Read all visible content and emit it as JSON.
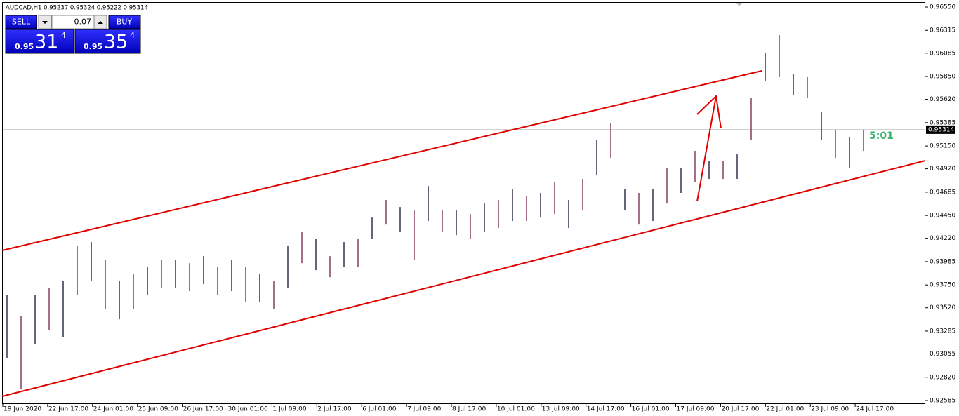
{
  "header": {
    "quote": "AUDCAD,H1 0.95237 0.95324 0.95222 0.95314"
  },
  "trade_panel": {
    "sell": "SELL",
    "buy": "BUY",
    "lots": "0.07",
    "sell_price": {
      "big": "0.95",
      "digits": "31",
      "pip": "4"
    },
    "buy_price": {
      "big": "0.95",
      "digits": "35",
      "pip": "4"
    }
  },
  "price_axis": {
    "ticks": [
      {
        "value": 0.9655,
        "label": "0.96550"
      },
      0.96315,
      0.96085,
      {
        "value": 0.9585,
        "label": "0.95850"
      },
      {
        "value": 0.9562,
        "label": "0.95620"
      },
      0.95385,
      {
        "value": 0.9515,
        "label": "0.95150"
      },
      {
        "value": 0.9492,
        "label": "0.94920"
      },
      0.94685,
      {
        "value": 0.9445,
        "label": "0.94450"
      },
      {
        "value": 0.9422,
        "label": "0.94220"
      },
      0.93985,
      {
        "value": 0.9375,
        "label": "0.93750"
      },
      {
        "value": 0.9352,
        "label": "0.93520"
      },
      0.93285,
      0.93055,
      {
        "value": 0.9282,
        "label": "0.92820"
      },
      0.92585
    ],
    "current": 0.95314
  },
  "time_axis": [
    "19 Jun 2020",
    "22 Jun 17:00",
    "24 Jun 01:00",
    "25 Jun 09:00",
    "26 Jun 17:00",
    "30 Jun 01:00",
    "1 Jul 09:00",
    "2 Jul 17:00",
    "6 Jul 01:00",
    "7 Jul 09:00",
    "8 Jul 17:00",
    "10 Jul 01:00",
    "13 Jul 09:00",
    "14 Jul 17:00",
    "16 Jul 01:00",
    "17 Jul 09:00",
    "20 Jul 17:00",
    "22 Jul 01:00",
    "23 Jul 09:00",
    "24 Jul 17:00"
  ],
  "bars": {
    "highs": [
      0.93651,
      0.93439,
      0.93651,
      0.93722,
      0.93793,
      0.94146,
      0.94182,
      0.94005,
      0.93793,
      0.93863,
      0.93934,
      0.94005,
      0.94005,
      0.93969,
      0.9404,
      0.93934,
      0.94005,
      0.93934,
      0.93863,
      0.93793,
      0.94146,
      0.94288,
      0.94217,
      0.9404,
      0.94182,
      0.94217,
      0.94429,
      0.94606,
      0.94535,
      0.945,
      0.94747,
      0.945,
      0.945,
      0.94464,
      0.9457,
      0.94606,
      0.94712,
      0.94641,
      0.94677,
      0.94783,
      0.94606,
      0.94818,
      0.95207,
      0.95383,
      0.94712,
      0.94677,
      0.94712,
      0.94924,
      0.94924,
      0.95101,
      0.94995,
      0.94995,
      0.95065,
      0.95631,
      0.9609,
      0.96267,
      0.95878,
      0.95843,
      0.9549,
      0.95313,
      0.95242,
      0.95313
    ],
    "lows": [
      0.93015,
      0.92697,
      0.93156,
      0.93298,
      0.93227,
      0.93651,
      0.93793,
      0.9351,
      0.93404,
      0.9351,
      0.93651,
      0.93722,
      0.93722,
      0.93687,
      0.93757,
      0.93651,
      0.93687,
      0.93581,
      0.93581,
      0.9351,
      0.93722,
      0.93969,
      0.93899,
      0.93828,
      0.93934,
      0.93934,
      0.94217,
      0.94358,
      0.94288,
      0.94005,
      0.94394,
      0.94288,
      0.94252,
      0.94217,
      0.94288,
      0.94323,
      0.94394,
      0.94394,
      0.94429,
      0.94464,
      0.94323,
      0.945,
      0.94853,
      0.9503,
      0.945,
      0.94358,
      0.94394,
      0.9457,
      0.94677,
      0.94783,
      0.94818,
      0.94818,
      0.94818,
      0.95207,
      0.95808,
      0.95843,
      0.95666,
      0.95631,
      0.95207,
      0.9503,
      0.94924,
      0.95101
    ]
  },
  "timer": "5:01"
}
